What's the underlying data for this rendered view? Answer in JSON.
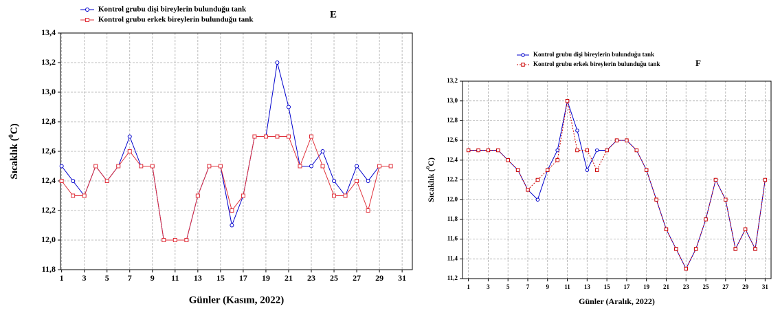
{
  "chart_data": [
    {
      "type": "line",
      "panel_label": "E",
      "xlabel": "Günler (Kasım, 2022)",
      "ylabel": [
        "Sıcaklık (",
        "0",
        "C)"
      ],
      "x": [
        1,
        2,
        3,
        4,
        5,
        6,
        7,
        8,
        9,
        10,
        11,
        12,
        13,
        14,
        15,
        16,
        17,
        18,
        19,
        20,
        21,
        22,
        23,
        24,
        25,
        26,
        27,
        28,
        29,
        30
      ],
      "xlim": [
        0.9,
        31.9
      ],
      "xticks": [
        1,
        3,
        5,
        7,
        9,
        11,
        13,
        15,
        17,
        19,
        21,
        23,
        25,
        27,
        29,
        31
      ],
      "ylim": [
        11.8,
        13.4
      ],
      "yticks": [
        {
          "value": 11.8,
          "label": "11,8"
        },
        {
          "value": 12.0,
          "label": "12,0"
        },
        {
          "value": 12.2,
          "label": "12,2"
        },
        {
          "value": 12.4,
          "label": "12,4"
        },
        {
          "value": 12.6,
          "label": "12,6"
        },
        {
          "value": 12.8,
          "label": "12,8"
        },
        {
          "value": 13.0,
          "label": "13,0"
        },
        {
          "value": 13.2,
          "label": "13,2"
        },
        {
          "value": 13.4,
          "label": "13,4"
        }
      ],
      "grid": true,
      "series": [
        {
          "name": "Kontrol grubu dişi bireylerin bulunduğu tank",
          "color": "#0000cc",
          "marker": "circle",
          "dashed": false,
          "values": [
            12.5,
            12.4,
            12.3,
            12.5,
            12.4,
            12.5,
            12.7,
            12.5,
            12.5,
            12.0,
            12.0,
            12.0,
            12.3,
            12.5,
            12.5,
            12.1,
            12.3,
            12.7,
            12.7,
            13.2,
            12.9,
            12.5,
            12.5,
            12.6,
            12.4,
            12.3,
            12.5,
            12.4,
            12.5,
            12.5
          ]
        },
        {
          "name": "Kontrol grubu erkek bireylerin bulunduğu tank",
          "color": "#e0303a",
          "marker": "square",
          "dashed": false,
          "values": [
            12.4,
            12.3,
            12.3,
            12.5,
            12.4,
            12.5,
            12.6,
            12.5,
            12.5,
            12.0,
            12.0,
            12.0,
            12.3,
            12.5,
            12.5,
            12.2,
            12.3,
            12.7,
            12.7,
            12.7,
            12.7,
            12.5,
            12.7,
            12.5,
            12.3,
            12.3,
            12.4,
            12.2,
            12.5,
            12.5
          ]
        }
      ]
    },
    {
      "type": "line",
      "panel_label": "F",
      "xlabel": "Günler (Aralık, 2022)",
      "ylabel": [
        "Sıcaklık (",
        "0",
        "C)"
      ],
      "x": [
        1,
        2,
        3,
        4,
        5,
        6,
        7,
        8,
        9,
        10,
        11,
        12,
        13,
        14,
        15,
        16,
        17,
        18,
        19,
        20,
        21,
        22,
        23,
        24,
        25,
        26,
        27,
        28,
        29,
        30,
        31
      ],
      "xlim": [
        0.4,
        31.6
      ],
      "xticks": [
        1,
        3,
        5,
        7,
        9,
        11,
        13,
        15,
        17,
        19,
        21,
        23,
        25,
        27,
        29,
        31
      ],
      "ylim": [
        11.2,
        13.2
      ],
      "yticks": [
        {
          "value": 11.2,
          "label": "11,2"
        },
        {
          "value": 11.4,
          "label": "11,4"
        },
        {
          "value": 11.6,
          "label": "11,6"
        },
        {
          "value": 11.8,
          "label": "11,8"
        },
        {
          "value": 12.0,
          "label": "12,0"
        },
        {
          "value": 12.2,
          "label": "12,2"
        },
        {
          "value": 12.4,
          "label": "12,4"
        },
        {
          "value": 12.6,
          "label": "12,6"
        },
        {
          "value": 12.8,
          "label": "12,8"
        },
        {
          "value": 13.0,
          "label": "13,0"
        },
        {
          "value": 13.2,
          "label": "13,2"
        }
      ],
      "grid": true,
      "series": [
        {
          "name": "Kontrol grubu dişi bireylerin bulunduğu tank",
          "color": "#0000cc",
          "marker": "circle",
          "dashed": false,
          "values": [
            12.5,
            12.5,
            12.5,
            12.5,
            12.4,
            12.3,
            12.1,
            12.0,
            12.3,
            12.5,
            13.0,
            12.7,
            12.3,
            12.5,
            12.5,
            12.6,
            12.6,
            12.5,
            12.3,
            12.0,
            11.7,
            11.5,
            11.3,
            11.5,
            11.8,
            12.2,
            12.0,
            11.5,
            11.7,
            11.5,
            12.2
          ]
        },
        {
          "name": "Kontrol grubu erkek bireylerin bulunduğu tank",
          "color": "#cc0000",
          "marker": "square",
          "dashed": true,
          "values": [
            12.5,
            12.5,
            12.5,
            12.5,
            12.4,
            12.3,
            12.1,
            12.2,
            12.3,
            12.4,
            13.0,
            12.5,
            12.5,
            12.3,
            12.5,
            12.6,
            12.6,
            12.5,
            12.3,
            12.0,
            11.7,
            11.5,
            11.3,
            11.5,
            11.8,
            12.2,
            12.0,
            11.5,
            11.7,
            11.5,
            12.2
          ]
        }
      ]
    }
  ]
}
